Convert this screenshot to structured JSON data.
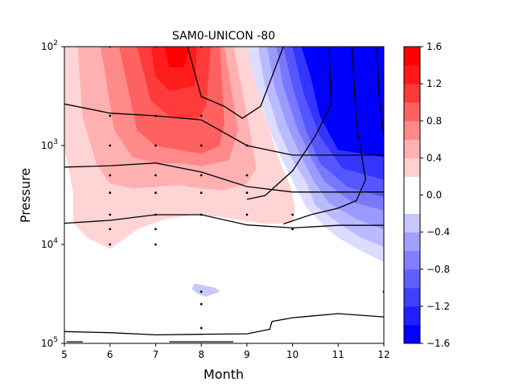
{
  "chart_data": {
    "type": "contour",
    "title": "SAM0-UNICON -80",
    "xlabel": "Month",
    "ylabel": "Pressure",
    "x_range": [
      5,
      12
    ],
    "x_ticks": [
      "5",
      "6",
      "7",
      "8",
      "9",
      "10",
      "11",
      "12"
    ],
    "y_scale": "log",
    "y_inverted": true,
    "y_range": [
      100,
      100000
    ],
    "y_ticks": [
      {
        "value": 100,
        "base": "10",
        "exp": "2"
      },
      {
        "value": 1000,
        "base": "10",
        "exp": "3"
      },
      {
        "value": 10000,
        "base": "10",
        "exp": "4"
      },
      {
        "value": 100000,
        "base": "10",
        "exp": "5"
      }
    ],
    "colorbar": {
      "levels": [
        -1.6,
        -1.4,
        -1.2,
        -1.0,
        -0.8,
        -0.6,
        -0.4,
        -0.2,
        0.2,
        0.4,
        0.6,
        0.8,
        1.0,
        1.2,
        1.4,
        1.6
      ],
      "tick_labels": [
        "1.6",
        "1.2",
        "0.8",
        "0.4",
        "0.0",
        "−0.4",
        "−0.8",
        "−1.2",
        "−1.6"
      ],
      "colors": [
        "#0000ff",
        "#2020ff",
        "#4040ff",
        "#6060ff",
        "#8080ff",
        "#a0a0ff",
        "#c8c8ff",
        "#ffffff",
        "#ffd0d0",
        "#ffb0b0",
        "#ff8888",
        "#ff6060",
        "#ff3838",
        "#ff1818",
        "#ff0000"
      ]
    },
    "filled_regions": [
      {
        "level": 0.2,
        "color": "#ffd4d4",
        "points": [
          [
            5,
            100
          ],
          [
            9.0,
            100
          ],
          [
            9.35,
            450
          ],
          [
            9.7,
            1400
          ],
          [
            9.95,
            2600
          ],
          [
            10.05,
            4200
          ],
          [
            10.0,
            6000
          ],
          [
            9.5,
            6200
          ],
          [
            9.0,
            5800
          ],
          [
            8.4,
            5200
          ],
          [
            7.8,
            5000
          ],
          [
            7.2,
            5500
          ],
          [
            6.6,
            7000
          ],
          [
            6.0,
            11000
          ],
          [
            5.5,
            8500
          ],
          [
            5.2,
            6000
          ],
          [
            5.2,
            3000
          ],
          [
            5.0,
            1000
          ]
        ]
      },
      {
        "level": 0.4,
        "color": "#ffb0b0",
        "points": [
          [
            5.3,
            100
          ],
          [
            8.7,
            100
          ],
          [
            9.0,
            500
          ],
          [
            9.2,
            1700
          ],
          [
            9.0,
            2400
          ],
          [
            8.5,
            2800
          ],
          [
            8.0,
            2700
          ],
          [
            7.5,
            2500
          ],
          [
            7.0,
            2600
          ],
          [
            6.5,
            2700
          ],
          [
            6.0,
            2400
          ],
          [
            5.7,
            1500
          ],
          [
            5.4,
            500
          ]
        ]
      },
      {
        "level": 0.6,
        "color": "#ff8a8a",
        "points": [
          [
            5.8,
            100
          ],
          [
            8.5,
            100
          ],
          [
            8.8,
            700
          ],
          [
            8.6,
            1400
          ],
          [
            8.0,
            1600
          ],
          [
            7.5,
            1500
          ],
          [
            7.0,
            1500
          ],
          [
            6.5,
            1300
          ],
          [
            6.1,
            700
          ]
        ]
      },
      {
        "level": 0.8,
        "color": "#ff6060",
        "points": [
          [
            6.2,
            100
          ],
          [
            8.4,
            100
          ],
          [
            8.5,
            600
          ],
          [
            8.4,
            1000
          ],
          [
            8.0,
            1200
          ],
          [
            7.5,
            1100
          ],
          [
            7.0,
            1000
          ],
          [
            6.6,
            700
          ]
        ]
      },
      {
        "level": 1.0,
        "color": "#ff3a3a",
        "points": [
          [
            6.6,
            100
          ],
          [
            8.2,
            100
          ],
          [
            8.1,
            400
          ],
          [
            7.9,
            550
          ],
          [
            7.3,
            500
          ],
          [
            6.9,
            350
          ]
        ]
      },
      {
        "level": 1.2,
        "color": "#ff1c1c",
        "points": [
          [
            6.9,
            100
          ],
          [
            7.9,
            100
          ],
          [
            7.85,
            250
          ],
          [
            7.3,
            280
          ],
          [
            7.0,
            200
          ]
        ]
      },
      {
        "level": 1.4,
        "color": "#ff0000",
        "points": [
          [
            7.2,
            100
          ],
          [
            7.75,
            100
          ],
          [
            7.6,
            160
          ],
          [
            7.3,
            160
          ]
        ]
      },
      {
        "level": -0.2,
        "color": "#dcdcff",
        "points": [
          [
            9.0,
            100
          ],
          [
            12,
            100
          ],
          [
            12,
            15000
          ],
          [
            11.5,
            11500
          ],
          [
            11.0,
            8500
          ],
          [
            10.7,
            6500
          ],
          [
            10.3,
            4200
          ],
          [
            10.05,
            2500
          ],
          [
            9.75,
            1300
          ],
          [
            9.5,
            700
          ],
          [
            9.2,
            250
          ]
        ]
      },
      {
        "level": -0.4,
        "color": "#babaff",
        "points": [
          [
            9.25,
            100
          ],
          [
            12,
            100
          ],
          [
            12,
            10500
          ],
          [
            11.5,
            8500
          ],
          [
            11.0,
            6000
          ],
          [
            10.5,
            4000
          ],
          [
            10.3,
            2300
          ],
          [
            10.0,
            1400
          ],
          [
            9.7,
            700
          ],
          [
            9.4,
            250
          ]
        ]
      },
      {
        "level": -0.6,
        "color": "#9a9aff",
        "points": [
          [
            9.45,
            100
          ],
          [
            12,
            100
          ],
          [
            12,
            7000
          ],
          [
            11.4,
            5500
          ],
          [
            10.8,
            3800
          ],
          [
            10.45,
            2200
          ],
          [
            10.2,
            1300
          ],
          [
            9.9,
            650
          ],
          [
            9.6,
            250
          ]
        ]
      },
      {
        "level": -0.8,
        "color": "#7878ff",
        "points": [
          [
            9.65,
            100
          ],
          [
            12,
            100
          ],
          [
            12,
            4500
          ],
          [
            11.3,
            3700
          ],
          [
            10.7,
            2300
          ],
          [
            10.4,
            1300
          ],
          [
            10.1,
            650
          ],
          [
            9.8,
            250
          ]
        ]
      },
      {
        "level": -1.0,
        "color": "#5656ff",
        "points": [
          [
            9.8,
            100
          ],
          [
            12,
            100
          ],
          [
            12,
            3300
          ],
          [
            11.2,
            2600
          ],
          [
            10.6,
            1500
          ],
          [
            10.3,
            700
          ],
          [
            10.0,
            250
          ]
        ]
      },
      {
        "level": -1.2,
        "color": "#3434ff",
        "points": [
          [
            10.0,
            100
          ],
          [
            12,
            100
          ],
          [
            12,
            2200
          ],
          [
            11.1,
            1700
          ],
          [
            10.6,
            800
          ],
          [
            10.25,
            300
          ]
        ]
      },
      {
        "level": -1.4,
        "color": "#0000ff",
        "points": [
          [
            10.2,
            100
          ],
          [
            12,
            100
          ],
          [
            12,
            1300
          ],
          [
            11.0,
            1100
          ],
          [
            10.6,
            500
          ],
          [
            10.4,
            200
          ]
        ]
      },
      {
        "level": -0.2,
        "color": "#c8c8ff",
        "points": [
          [
            7.85,
            25000
          ],
          [
            8.3,
            27500
          ],
          [
            8.4,
            30000
          ],
          [
            8.1,
            33500
          ],
          [
            7.9,
            31000
          ],
          [
            7.8,
            28000
          ]
        ]
      }
    ],
    "contour_lines": [
      [
        [
          5,
          380
        ],
        [
          6,
          470
        ],
        [
          7,
          500
        ],
        [
          8,
          550
        ],
        [
          9,
          1000
        ],
        [
          10,
          1250
        ],
        [
          11,
          1250
        ],
        [
          12,
          1250
        ]
      ],
      [
        [
          5,
          1650
        ],
        [
          6,
          1600
        ],
        [
          7,
          1500
        ],
        [
          8,
          1850
        ],
        [
          9,
          2600
        ],
        [
          10,
          2950
        ],
        [
          11,
          2950
        ],
        [
          12,
          2950
        ]
      ],
      [
        [
          5,
          6100
        ],
        [
          6,
          5700
        ],
        [
          7,
          5000
        ],
        [
          8,
          5000
        ],
        [
          9,
          6350
        ],
        [
          10,
          6800
        ],
        [
          11,
          6400
        ],
        [
          12,
          6400
        ]
      ],
      [
        [
          5,
          76000
        ],
        [
          6,
          78000
        ],
        [
          7,
          82000
        ],
        [
          8,
          81000
        ],
        [
          9,
          80000
        ],
        [
          9.5,
          72000
        ],
        [
          9.55,
          60000
        ],
        [
          10,
          55000
        ],
        [
          11,
          50000
        ],
        [
          12,
          54000
        ]
      ],
      [
        [
          5.8,
          55
        ],
        [
          6.9,
          72
        ],
        [
          7.7,
          100
        ],
        [
          8.0,
          320
        ],
        [
          8.5,
          400
        ],
        [
          8.9,
          530
        ],
        [
          9.3,
          400
        ],
        [
          9.8,
          100
        ],
        [
          10.1,
          40
        ]
      ],
      [
        [
          10.8,
          100
        ],
        [
          10.85,
          380
        ],
        [
          10.5,
          800
        ],
        [
          10.0,
          1800
        ],
        [
          9.4,
          3200
        ],
        [
          9.0,
          3500
        ]
      ],
      [
        [
          11.3,
          100
        ],
        [
          11.4,
          600
        ],
        [
          11.6,
          2200
        ],
        [
          11.4,
          3600
        ],
        [
          11.0,
          4300
        ],
        [
          10.4,
          5000
        ],
        [
          9.8,
          6200
        ]
      ],
      [
        [
          11.85,
          100
        ],
        [
          11.9,
          320
        ],
        [
          12,
          800
        ]
      ]
    ],
    "stipple_points": [
      [
        6,
        100
      ],
      [
        7,
        100
      ],
      [
        8,
        100
      ],
      [
        6,
        500
      ],
      [
        7,
        500
      ],
      [
        8,
        500
      ],
      [
        6,
        1000
      ],
      [
        7,
        1000
      ],
      [
        8,
        1000
      ],
      [
        9,
        1000
      ],
      [
        6,
        2000
      ],
      [
        7,
        2000
      ],
      [
        8,
        2000
      ],
      [
        9,
        2000
      ],
      [
        6,
        3000
      ],
      [
        7,
        3000
      ],
      [
        8,
        3000
      ],
      [
        9,
        3000
      ],
      [
        6,
        5000
      ],
      [
        7,
        5000
      ],
      [
        8,
        5000
      ],
      [
        9,
        5000
      ],
      [
        10,
        5000
      ],
      [
        6,
        7000
      ],
      [
        7,
        7000
      ],
      [
        10,
        7000
      ],
      [
        6,
        10000
      ],
      [
        7,
        10000
      ],
      [
        8,
        30000
      ],
      [
        8,
        40000
      ],
      [
        12,
        30000
      ],
      [
        8,
        70000
      ]
    ],
    "bottom_marks": [
      [
        [
          5.05,
          100000
        ],
        [
          5.4,
          100000
        ]
      ],
      [
        [
          7.3,
          100000
        ],
        [
          8.7,
          100000
        ]
      ]
    ],
    "grid": false,
    "legend": "colorbar-right"
  }
}
